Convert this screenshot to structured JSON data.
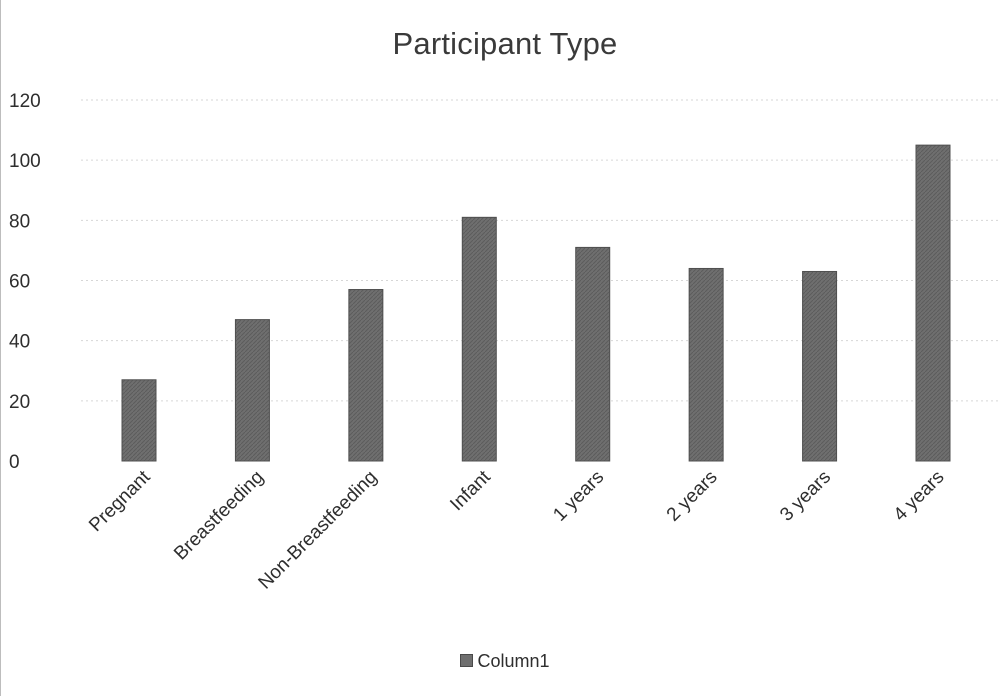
{
  "chart_data": {
    "type": "bar",
    "title": "Participant Type",
    "categories": [
      "Pregnant",
      "Breastfeeding",
      "Non-Breastfeeding",
      "Infant",
      "1 years",
      "2 years",
      "3 years",
      "4 years"
    ],
    "series": [
      {
        "name": "Column1",
        "values": [
          27,
          47,
          57,
          81,
          71,
          64,
          63,
          105
        ]
      }
    ],
    "yticks": [
      "0",
      "20",
      "40",
      "60",
      "80",
      "100",
      "120"
    ],
    "ylim": [
      0,
      120
    ],
    "xlabel": "",
    "ylabel": "",
    "grid": true,
    "legend_position": "bottom",
    "bar_color": "#6f6f6f",
    "bar_edge_color": "#4f4f4f",
    "grid_color": "#d6d6d6"
  }
}
